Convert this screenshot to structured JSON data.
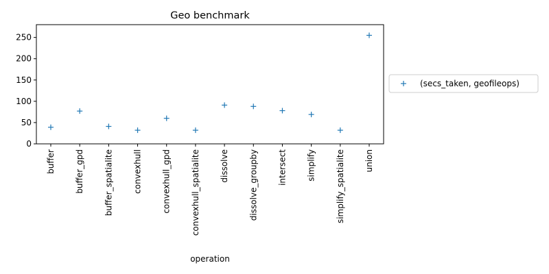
{
  "chart_data": {
    "type": "scatter",
    "title": "Geo benchmark",
    "xlabel": "operation",
    "ylabel": "",
    "categories": [
      "buffer",
      "buffer_gpd",
      "buffer_spatialite",
      "convexhull",
      "convexhull_gpd",
      "convexhull_spatialite",
      "dissolve",
      "dissolve_groupby",
      "intersect",
      "simplify",
      "simplify_spatialite",
      "union"
    ],
    "series": [
      {
        "name": "(secs_taken, geofileops)",
        "values": [
          39,
          77,
          41,
          32,
          60,
          32,
          91,
          88,
          78,
          69,
          32,
          255
        ],
        "marker": "+",
        "color": "#1f77b4"
      }
    ],
    "ylim": [
      0,
      280
    ],
    "yticks": [
      0,
      50,
      100,
      150,
      200,
      250
    ],
    "grid": false,
    "legend_position": "outside-right"
  }
}
